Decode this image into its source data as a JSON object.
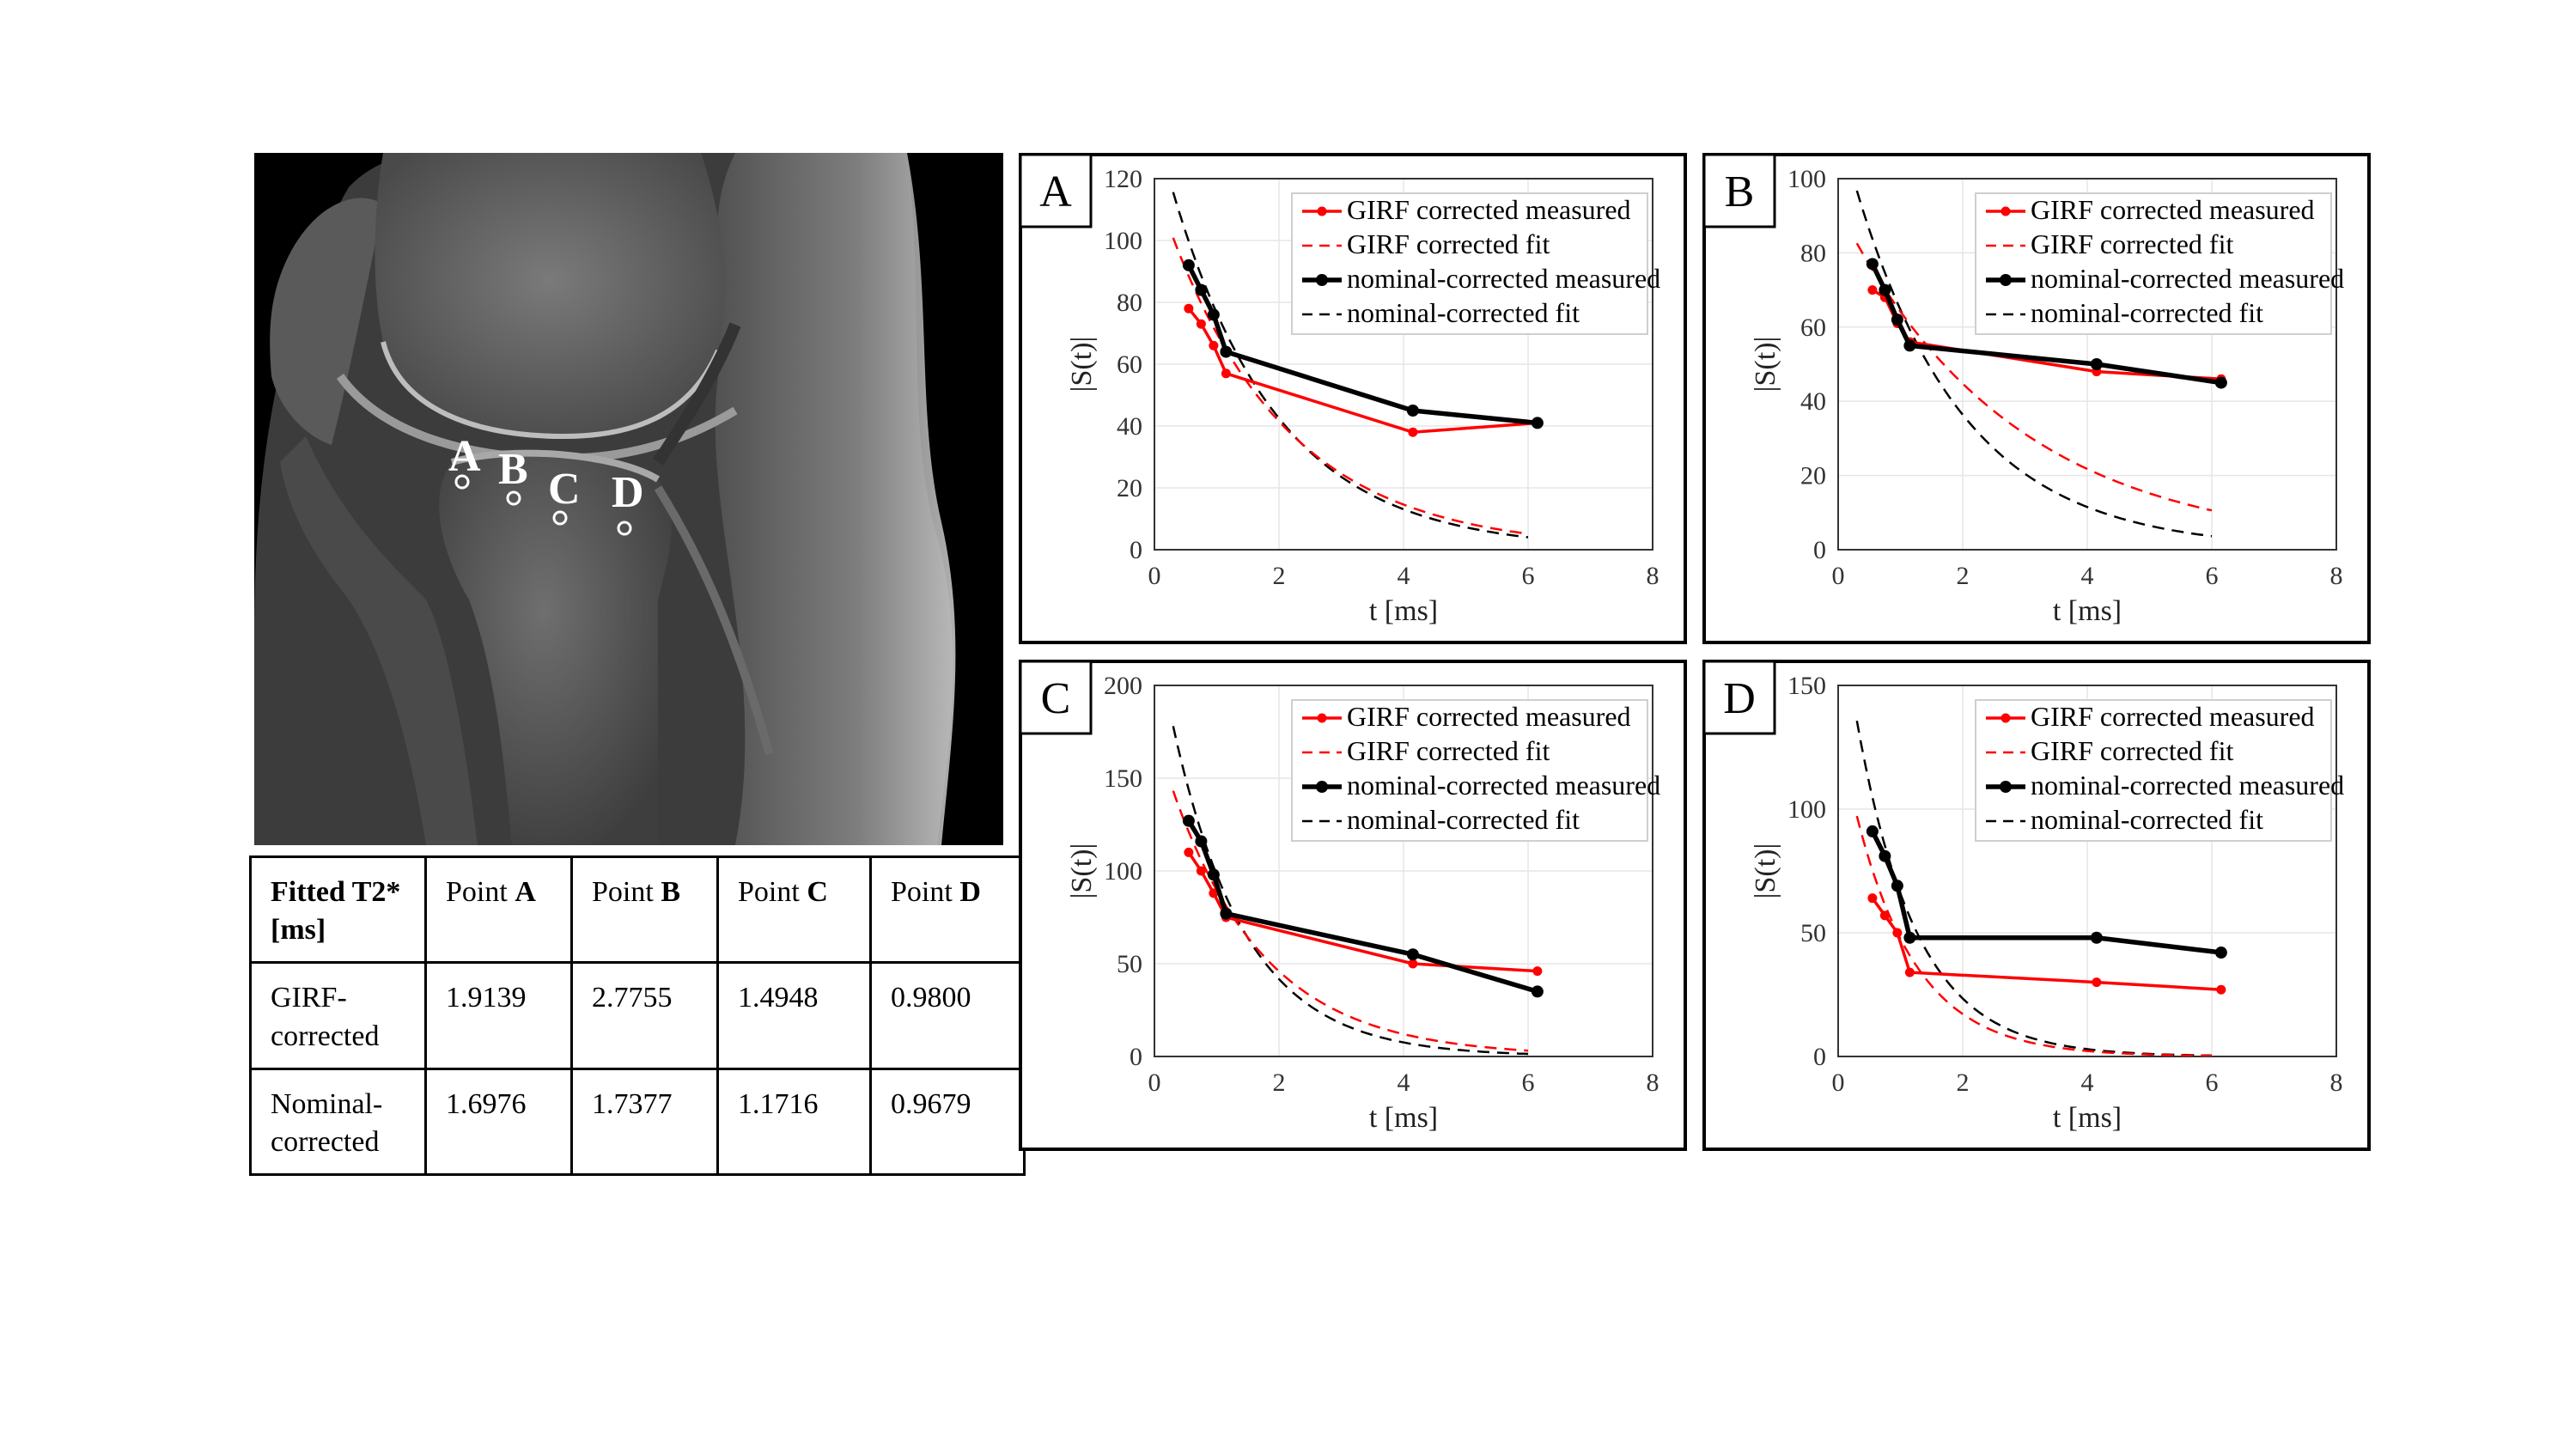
{
  "mri": {
    "points": [
      {
        "label": "A"
      },
      {
        "label": "B"
      },
      {
        "label": "C"
      },
      {
        "label": "D"
      }
    ]
  },
  "table": {
    "header": {
      "col0": "Fitted T2* [ms]",
      "point_prefix": "Point",
      "points": [
        "A",
        "B",
        "C",
        "D"
      ]
    },
    "rows": [
      {
        "label": "GIRF-corrected",
        "values": [
          "1.9139",
          "2.7755",
          "1.4948",
          "0.9800"
        ]
      },
      {
        "label": "Nominal-corrected",
        "values": [
          "1.6976",
          "1.7377",
          "1.1716",
          "0.9679"
        ]
      }
    ]
  },
  "colors": {
    "girf": "#ff0000",
    "nominal": "#000000",
    "grid": "#e6e6e6"
  },
  "chart_data": [
    {
      "type": "line",
      "panel_label": "A",
      "xlabel": "t [ms]",
      "ylabel": "|S(t)|",
      "xlim": [
        0,
        8
      ],
      "ylim": [
        0,
        120
      ],
      "xticks": [
        0,
        2,
        4,
        6,
        8
      ],
      "yticks": [
        0,
        20,
        40,
        60,
        80,
        100,
        120
      ],
      "legend": [
        "GIRF corrected measured",
        "GIRF corrected fit",
        "nominal-corrected measured",
        "nominal-corrected fit"
      ],
      "legend_position": "top-right",
      "series": [
        {
          "name": "GIRF corrected measured",
          "x": [
            0.55,
            0.75,
            0.95,
            1.15,
            4.15,
            6.15
          ],
          "y": [
            78,
            73,
            66,
            57,
            38,
            41
          ]
        },
        {
          "name": "GIRF corrected fit",
          "fit": {
            "A": 118,
            "T2": 1.9139,
            "x0": 0.3,
            "x1": 6.0
          }
        },
        {
          "name": "nominal-corrected measured",
          "x": [
            0.55,
            0.75,
            0.95,
            1.15,
            4.15,
            6.15
          ],
          "y": [
            92,
            84,
            76,
            64,
            45,
            41
          ]
        },
        {
          "name": "nominal-corrected fit",
          "fit": {
            "A": 138,
            "T2": 1.6976,
            "x0": 0.3,
            "x1": 6.0
          }
        }
      ]
    },
    {
      "type": "line",
      "panel_label": "B",
      "xlabel": "t [ms]",
      "ylabel": "|S(t)|",
      "xlim": [
        0,
        8
      ],
      "ylim": [
        0,
        100
      ],
      "xticks": [
        0,
        2,
        4,
        6,
        8
      ],
      "yticks": [
        0,
        20,
        40,
        60,
        80,
        100
      ],
      "legend": [
        "GIRF corrected measured",
        "GIRF corrected fit",
        "nominal-corrected measured",
        "nominal-corrected fit"
      ],
      "legend_position": "top-right",
      "series": [
        {
          "name": "GIRF corrected measured",
          "x": [
            0.55,
            0.75,
            0.95,
            1.15,
            4.15,
            6.15
          ],
          "y": [
            70,
            68,
            61,
            56,
            48,
            46
          ]
        },
        {
          "name": "GIRF corrected fit",
          "fit": {
            "A": 92,
            "T2": 2.7755,
            "x0": 0.3,
            "x1": 6.0
          }
        },
        {
          "name": "nominal-corrected measured",
          "x": [
            0.55,
            0.75,
            0.95,
            1.15,
            4.15,
            6.15
          ],
          "y": [
            77,
            70,
            62,
            55,
            50,
            45
          ]
        },
        {
          "name": "nominal-corrected fit",
          "fit": {
            "A": 115,
            "T2": 1.7377,
            "x0": 0.3,
            "x1": 6.0
          }
        }
      ]
    },
    {
      "type": "line",
      "panel_label": "C",
      "xlabel": "t [ms]",
      "ylabel": "|S(t)|",
      "xlim": [
        0,
        8
      ],
      "ylim": [
        0,
        200
      ],
      "xticks": [
        0,
        2,
        4,
        6,
        8
      ],
      "yticks": [
        0,
        50,
        100,
        150,
        200
      ],
      "legend": [
        "GIRF corrected measured",
        "GIRF corrected fit",
        "nominal-corrected measured",
        "nominal-corrected fit"
      ],
      "legend_position": "top-right",
      "series": [
        {
          "name": "GIRF corrected measured",
          "x": [
            0.55,
            0.75,
            0.95,
            1.15,
            4.15,
            6.15
          ],
          "y": [
            110,
            100,
            88,
            75,
            50,
            46
          ]
        },
        {
          "name": "GIRF corrected fit",
          "fit": {
            "A": 175,
            "T2": 1.4948,
            "x0": 0.3,
            "x1": 6.0
          }
        },
        {
          "name": "nominal-corrected measured",
          "x": [
            0.55,
            0.75,
            0.95,
            1.15,
            4.15,
            6.15
          ],
          "y": [
            127,
            116,
            98,
            77,
            55,
            35
          ]
        },
        {
          "name": "nominal-corrected fit",
          "fit": {
            "A": 230,
            "T2": 1.1716,
            "x0": 0.3,
            "x1": 6.0
          }
        }
      ]
    },
    {
      "type": "line",
      "panel_label": "D",
      "xlabel": "t [ms]",
      "ylabel": "|S(t)|",
      "xlim": [
        0,
        8
      ],
      "ylim": [
        0,
        150
      ],
      "xticks": [
        0,
        2,
        4,
        6,
        8
      ],
      "yticks": [
        0,
        50,
        100,
        150
      ],
      "legend": [
        "GIRF corrected measured",
        "GIRF corrected fit",
        "nominal-corrected measured",
        "nominal-corrected fit"
      ],
      "legend_position": "top-right",
      "series": [
        {
          "name": "GIRF corrected measured",
          "x": [
            0.55,
            0.75,
            0.95,
            1.15,
            4.15,
            6.15
          ],
          "y": [
            64,
            57,
            50,
            34,
            30,
            27
          ]
        },
        {
          "name": "GIRF corrected fit",
          "fit": {
            "A": 132,
            "T2": 0.98,
            "x0": 0.3,
            "x1": 6.0
          }
        },
        {
          "name": "nominal-corrected measured",
          "x": [
            0.55,
            0.75,
            0.95,
            1.15,
            4.15,
            6.15
          ],
          "y": [
            91,
            81,
            69,
            48,
            48,
            42
          ]
        },
        {
          "name": "nominal-corrected fit",
          "fit": {
            "A": 185,
            "T2": 0.9679,
            "x0": 0.3,
            "x1": 6.0
          }
        }
      ]
    }
  ]
}
